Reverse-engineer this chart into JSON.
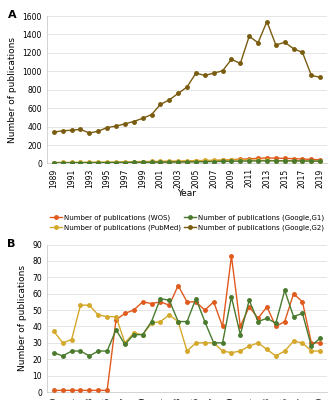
{
  "years": [
    1989,
    1990,
    1991,
    1992,
    1993,
    1994,
    1995,
    1996,
    1997,
    1998,
    1999,
    2000,
    2001,
    2002,
    2003,
    2004,
    2005,
    2006,
    2007,
    2008,
    2009,
    2010,
    2011,
    2012,
    2013,
    2014,
    2015,
    2016,
    2017,
    2018,
    2019
  ],
  "wos_a": [
    5,
    5,
    5,
    5,
    5,
    6,
    7,
    8,
    9,
    10,
    11,
    13,
    15,
    17,
    18,
    20,
    22,
    25,
    28,
    35,
    42,
    46,
    50,
    55,
    60,
    58,
    55,
    52,
    48,
    44,
    40
  ],
  "pubmed_a": [
    10,
    12,
    11,
    13,
    13,
    15,
    15,
    17,
    18,
    19,
    21,
    22,
    24,
    26,
    27,
    29,
    31,
    33,
    35,
    37,
    39,
    38,
    36,
    34,
    33,
    31,
    29,
    28,
    27,
    26,
    25
  ],
  "google_g1_a": [
    7,
    7,
    7,
    8,
    8,
    9,
    9,
    10,
    10,
    11,
    12,
    13,
    14,
    15,
    16,
    17,
    18,
    19,
    21,
    22,
    24,
    25,
    26,
    27,
    28,
    28,
    28,
    28,
    27,
    26,
    25
  ],
  "google_g2_a": [
    340,
    355,
    360,
    370,
    330,
    350,
    390,
    405,
    430,
    455,
    490,
    530,
    640,
    690,
    760,
    830,
    980,
    955,
    980,
    1005,
    1130,
    1085,
    1380,
    1310,
    1540,
    1285,
    1315,
    1245,
    1205,
    955,
    935
  ],
  "wos_b": [
    1,
    1,
    1,
    1,
    1,
    1,
    1,
    44,
    48,
    50,
    55,
    54,
    55,
    53,
    65,
    55,
    55,
    50,
    55,
    40,
    83,
    40,
    52,
    45,
    52,
    40,
    43,
    60,
    55,
    30,
    30
  ],
  "pubmed_b": [
    37,
    30,
    32,
    53,
    53,
    47,
    46,
    46,
    30,
    36,
    35,
    42,
    43,
    47,
    43,
    25,
    30,
    30,
    30,
    25,
    24,
    25,
    28,
    30,
    26,
    22,
    25,
    31,
    30,
    25,
    25
  ],
  "google_g1_b": [
    24,
    22,
    25,
    25,
    22,
    25,
    25,
    38,
    29,
    35,
    35,
    43,
    57,
    56,
    43,
    43,
    57,
    43,
    30,
    30,
    58,
    35,
    56,
    43,
    45,
    42,
    62,
    46,
    48,
    28,
    33
  ],
  "color_wos": "#E05A1E",
  "color_pubmed": "#D4A82A",
  "color_g1": "#4A7A2E",
  "color_g2": "#7A5C10",
  "bg_color": "#ffffff",
  "grid_color": "#e0e0e0",
  "ylabel_a": "Number of publications",
  "ylabel_b": "Number of publications",
  "xlabel": "Year",
  "ylim_a": [
    0,
    1600
  ],
  "ylim_b": [
    0,
    90
  ],
  "yticks_a": [
    0,
    200,
    400,
    600,
    800,
    1000,
    1200,
    1400,
    1600
  ],
  "yticks_b": [
    0,
    10,
    20,
    30,
    40,
    50,
    60,
    70,
    80,
    90
  ],
  "xtick_years": [
    1989,
    1991,
    1993,
    1995,
    1997,
    1999,
    2001,
    2003,
    2005,
    2007,
    2009,
    2011,
    2013,
    2015,
    2017,
    2019
  ],
  "legend_a": [
    "Number of publications (WOS)",
    "Number of publications (PubMed)",
    "Number of publications (Google,G1)",
    "Number of publications (Google,G2)"
  ],
  "legend_b": [
    "Number of publications (WOS)",
    "Number of publications (PubMed)",
    "Number of publications (Google,G1)"
  ],
  "panel_a_label": "A",
  "panel_b_label": "B",
  "marker": "o",
  "markersize": 2.5,
  "linewidth": 1.0,
  "legend_fontsize": 5.0,
  "tick_fontsize": 5.5,
  "label_fontsize": 6.5,
  "panel_label_fontsize": 8
}
